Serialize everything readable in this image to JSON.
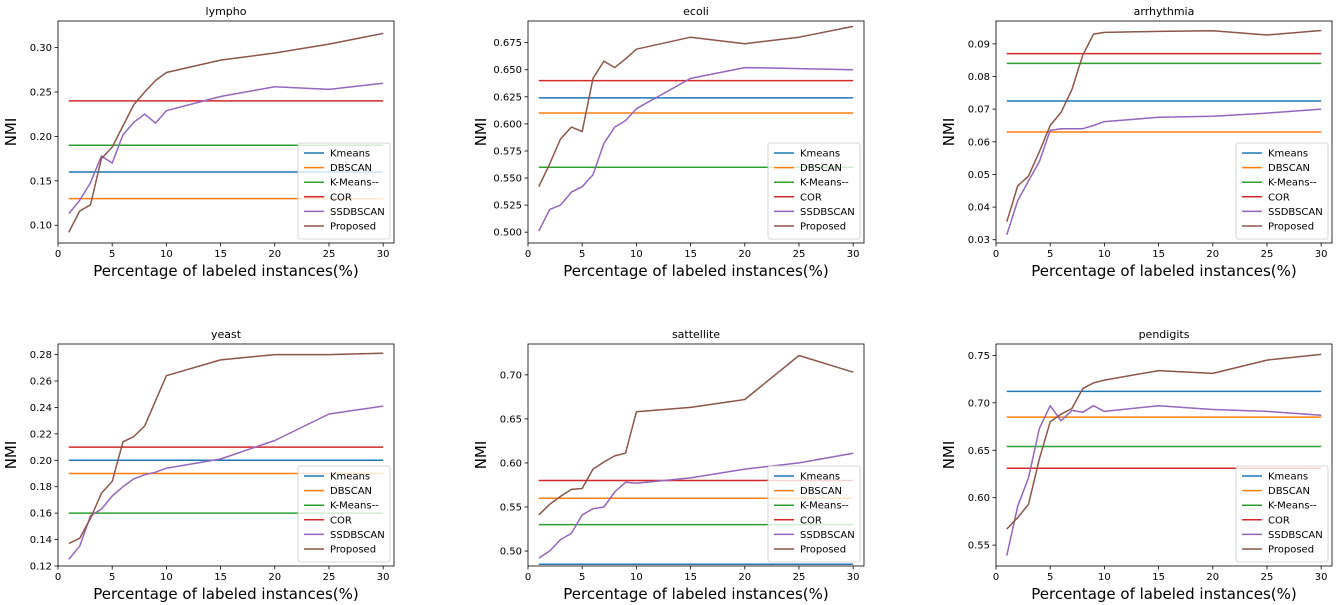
{
  "chart_data": [
    {
      "type": "line",
      "title": "lympho",
      "xlabel": "Percentage of labeled instances(%)",
      "ylabel": "NMI",
      "xlim": [
        0,
        31
      ],
      "ylim": [
        0.08,
        0.33
      ],
      "xticks": [
        0,
        5,
        10,
        15,
        20,
        25,
        30
      ],
      "yticks": [
        "0.10",
        "0.15",
        "0.20",
        "0.25",
        "0.30"
      ],
      "legend": "lower-right",
      "series": [
        {
          "name": "Kmeans",
          "color": "#1f77b4",
          "x": [
            1,
            30
          ],
          "values": [
            0.16,
            0.16
          ]
        },
        {
          "name": "DBSCAN",
          "color": "#ff7f0e",
          "x": [
            1,
            30
          ],
          "values": [
            0.13,
            0.13
          ]
        },
        {
          "name": "K-Means--",
          "color": "#2ca02c",
          "x": [
            1,
            30
          ],
          "values": [
            0.19,
            0.19
          ]
        },
        {
          "name": "COR",
          "color": "#d62728",
          "x": [
            1,
            30
          ],
          "values": [
            0.24,
            0.24
          ]
        },
        {
          "name": "SSDBSCAN",
          "color": "#9467bd",
          "x": [
            1,
            2,
            3,
            4,
            5,
            6,
            7,
            8,
            9,
            10,
            15,
            20,
            25,
            30
          ],
          "values": [
            0.113,
            0.128,
            0.148,
            0.178,
            0.17,
            0.202,
            0.216,
            0.225,
            0.215,
            0.229,
            0.245,
            0.256,
            0.253,
            0.26
          ]
        },
        {
          "name": "Proposed",
          "color": "#8c564b",
          "x": [
            1,
            2,
            3,
            4,
            5,
            6,
            7,
            8,
            9,
            10,
            15,
            20,
            25,
            30
          ],
          "values": [
            0.092,
            0.116,
            0.123,
            0.175,
            0.188,
            0.212,
            0.236,
            0.25,
            0.263,
            0.272,
            0.286,
            0.294,
            0.304,
            0.316
          ]
        }
      ]
    },
    {
      "type": "line",
      "title": "ecoli",
      "xlabel": "Percentage of labeled instances(%)",
      "ylabel": "NMI",
      "xlim": [
        0,
        31
      ],
      "ylim": [
        0.49,
        0.695
      ],
      "xticks": [
        0,
        5,
        10,
        15,
        20,
        25,
        30
      ],
      "yticks": [
        "0.500",
        "0.525",
        "0.550",
        "0.575",
        "0.600",
        "0.625",
        "0.650",
        "0.675"
      ],
      "legend": "lower-right",
      "series": [
        {
          "name": "Kmeans",
          "color": "#1f77b4",
          "x": [
            1,
            30
          ],
          "values": [
            0.624,
            0.624
          ]
        },
        {
          "name": "DBSCAN",
          "color": "#ff7f0e",
          "x": [
            1,
            30
          ],
          "values": [
            0.61,
            0.61
          ]
        },
        {
          "name": "K-Means--",
          "color": "#2ca02c",
          "x": [
            1,
            30
          ],
          "values": [
            0.56,
            0.56
          ]
        },
        {
          "name": "COR",
          "color": "#d62728",
          "x": [
            1,
            30
          ],
          "values": [
            0.64,
            0.64
          ]
        },
        {
          "name": "SSDBSCAN",
          "color": "#9467bd",
          "x": [
            1,
            2,
            3,
            4,
            5,
            6,
            7,
            8,
            9,
            10,
            15,
            20,
            25,
            30
          ],
          "values": [
            0.501,
            0.521,
            0.525,
            0.537,
            0.542,
            0.553,
            0.582,
            0.597,
            0.603,
            0.614,
            0.642,
            0.652,
            0.651,
            0.65
          ]
        },
        {
          "name": "Proposed",
          "color": "#8c564b",
          "x": [
            1,
            2,
            3,
            4,
            5,
            6,
            7,
            8,
            9,
            10,
            15,
            20,
            25,
            30
          ],
          "values": [
            0.542,
            0.563,
            0.586,
            0.597,
            0.593,
            0.642,
            0.658,
            0.652,
            0.66,
            0.669,
            0.68,
            0.674,
            0.68,
            0.69
          ]
        }
      ]
    },
    {
      "type": "line",
      "title": "arrhythmia",
      "xlabel": "Percentage of labeled instances(%)",
      "ylabel": "NMI",
      "xlim": [
        0,
        31
      ],
      "ylim": [
        0.029,
        0.097
      ],
      "xticks": [
        0,
        5,
        10,
        15,
        20,
        25,
        30
      ],
      "yticks": [
        "0.03",
        "0.04",
        "0.05",
        "0.06",
        "0.07",
        "0.08",
        "0.09"
      ],
      "legend": "lower-right",
      "series": [
        {
          "name": "Kmeans",
          "color": "#1f77b4",
          "x": [
            1,
            30
          ],
          "values": [
            0.0725,
            0.0725
          ]
        },
        {
          "name": "DBSCAN",
          "color": "#ff7f0e",
          "x": [
            1,
            30
          ],
          "values": [
            0.063,
            0.063
          ]
        },
        {
          "name": "K-Means--",
          "color": "#2ca02c",
          "x": [
            1,
            30
          ],
          "values": [
            0.084,
            0.084
          ]
        },
        {
          "name": "COR",
          "color": "#d62728",
          "x": [
            1,
            30
          ],
          "values": [
            0.087,
            0.087
          ]
        },
        {
          "name": "SSDBSCAN",
          "color": "#9467bd",
          "x": [
            1,
            2,
            3,
            4,
            5,
            6,
            7,
            8,
            9,
            10,
            15,
            20,
            25,
            30
          ],
          "values": [
            0.0315,
            0.042,
            0.048,
            0.054,
            0.0635,
            0.064,
            0.064,
            0.064,
            0.065,
            0.0662,
            0.0675,
            0.0678,
            0.0688,
            0.07
          ]
        },
        {
          "name": "Proposed",
          "color": "#8c564b",
          "x": [
            1,
            2,
            3,
            4,
            5,
            6,
            7,
            8,
            9,
            10,
            15,
            20,
            25,
            30
          ],
          "values": [
            0.0355,
            0.0465,
            0.0495,
            0.057,
            0.065,
            0.069,
            0.076,
            0.0865,
            0.093,
            0.0935,
            0.0938,
            0.094,
            0.0927,
            0.0941
          ]
        }
      ]
    },
    {
      "type": "line",
      "title": "yeast",
      "xlabel": "Percentage of labeled instances(%)",
      "ylabel": "NMI",
      "xlim": [
        0,
        31
      ],
      "ylim": [
        0.12,
        0.288
      ],
      "xticks": [
        0,
        5,
        10,
        15,
        20,
        25,
        30
      ],
      "yticks": [
        "0.12",
        "0.14",
        "0.16",
        "0.18",
        "0.20",
        "0.22",
        "0.24",
        "0.26",
        "0.28"
      ],
      "legend": "lower-right",
      "series": [
        {
          "name": "Kmeans",
          "color": "#1f77b4",
          "x": [
            1,
            30
          ],
          "values": [
            0.2,
            0.2
          ]
        },
        {
          "name": "DBSCAN",
          "color": "#ff7f0e",
          "x": [
            1,
            30
          ],
          "values": [
            0.19,
            0.19
          ]
        },
        {
          "name": "K-Means--",
          "color": "#2ca02c",
          "x": [
            1,
            30
          ],
          "values": [
            0.16,
            0.16
          ]
        },
        {
          "name": "COR",
          "color": "#d62728",
          "x": [
            1,
            30
          ],
          "values": [
            0.21,
            0.21
          ]
        },
        {
          "name": "SSDBSCAN",
          "color": "#9467bd",
          "x": [
            1,
            2,
            3,
            4,
            5,
            6,
            7,
            8,
            9,
            10,
            15,
            20,
            25,
            30
          ],
          "values": [
            0.125,
            0.135,
            0.158,
            0.163,
            0.173,
            0.18,
            0.186,
            0.189,
            0.191,
            0.194,
            0.201,
            0.215,
            0.235,
            0.241
          ]
        },
        {
          "name": "Proposed",
          "color": "#8c564b",
          "x": [
            1,
            2,
            3,
            4,
            5,
            6,
            7,
            8,
            9,
            10,
            15,
            20,
            25,
            30
          ],
          "values": [
            0.137,
            0.141,
            0.156,
            0.175,
            0.184,
            0.214,
            0.218,
            0.226,
            0.245,
            0.264,
            0.276,
            0.28,
            0.28,
            0.281
          ]
        }
      ]
    },
    {
      "type": "line",
      "title": "sattellite",
      "xlabel": "Percentage of labeled instances(%)",
      "ylabel": "NMI",
      "xlim": [
        0,
        31
      ],
      "ylim": [
        0.483,
        0.735
      ],
      "xticks": [
        0,
        5,
        10,
        15,
        20,
        25,
        30
      ],
      "yticks": [
        "0.50",
        "0.55",
        "0.60",
        "0.65",
        "0.70"
      ],
      "legend": "lower-right",
      "series": [
        {
          "name": "Kmeans",
          "color": "#1f77b4",
          "x": [
            1,
            30
          ],
          "values": [
            0.485,
            0.485
          ]
        },
        {
          "name": "DBSCAN",
          "color": "#ff7f0e",
          "x": [
            1,
            30
          ],
          "values": [
            0.56,
            0.56
          ]
        },
        {
          "name": "K-Means--",
          "color": "#2ca02c",
          "x": [
            1,
            30
          ],
          "values": [
            0.53,
            0.53
          ]
        },
        {
          "name": "COR",
          "color": "#d62728",
          "x": [
            1,
            30
          ],
          "values": [
            0.58,
            0.58
          ]
        },
        {
          "name": "SSDBSCAN",
          "color": "#9467bd",
          "x": [
            1,
            2,
            3,
            4,
            5,
            6,
            7,
            8,
            9,
            10,
            15,
            20,
            25,
            30
          ],
          "values": [
            0.492,
            0.5,
            0.513,
            0.52,
            0.541,
            0.548,
            0.55,
            0.567,
            0.578,
            0.577,
            0.583,
            0.593,
            0.6,
            0.611
          ]
        },
        {
          "name": "Proposed",
          "color": "#8c564b",
          "x": [
            1,
            2,
            3,
            4,
            5,
            6,
            7,
            8,
            9,
            10,
            15,
            20,
            25,
            30
          ],
          "values": [
            0.541,
            0.553,
            0.562,
            0.57,
            0.571,
            0.593,
            0.601,
            0.608,
            0.611,
            0.658,
            0.663,
            0.672,
            0.722,
            0.703
          ]
        }
      ]
    },
    {
      "type": "line",
      "title": "pendigits",
      "xlabel": "Percentage of labeled instances(%)",
      "ylabel": "NMI",
      "xlim": [
        0,
        31
      ],
      "ylim": [
        0.528,
        0.762
      ],
      "xticks": [
        0,
        5,
        10,
        15,
        20,
        25,
        30
      ],
      "yticks": [
        "0.55",
        "0.60",
        "0.65",
        "0.70",
        "0.75"
      ],
      "legend": "lower-right",
      "series": [
        {
          "name": "Kmeans",
          "color": "#1f77b4",
          "x": [
            1,
            30
          ],
          "values": [
            0.712,
            0.712
          ]
        },
        {
          "name": "DBSCAN",
          "color": "#ff7f0e",
          "x": [
            1,
            30
          ],
          "values": [
            0.685,
            0.685
          ]
        },
        {
          "name": "K-Means--",
          "color": "#2ca02c",
          "x": [
            1,
            30
          ],
          "values": [
            0.654,
            0.654
          ]
        },
        {
          "name": "COR",
          "color": "#d62728",
          "x": [
            1,
            30
          ],
          "values": [
            0.631,
            0.631
          ]
        },
        {
          "name": "SSDBSCAN",
          "color": "#9467bd",
          "x": [
            1,
            2,
            3,
            4,
            5,
            6,
            7,
            8,
            9,
            10,
            15,
            20,
            25,
            30
          ],
          "values": [
            0.539,
            0.591,
            0.621,
            0.673,
            0.697,
            0.681,
            0.692,
            0.69,
            0.697,
            0.691,
            0.697,
            0.693,
            0.691,
            0.687
          ]
        },
        {
          "name": "Proposed",
          "color": "#8c564b",
          "x": [
            1,
            2,
            3,
            4,
            5,
            6,
            7,
            8,
            9,
            10,
            15,
            20,
            25,
            30
          ],
          "values": [
            0.567,
            0.579,
            0.593,
            0.641,
            0.68,
            0.688,
            0.694,
            0.715,
            0.721,
            0.724,
            0.734,
            0.731,
            0.745,
            0.751
          ]
        }
      ]
    }
  ]
}
